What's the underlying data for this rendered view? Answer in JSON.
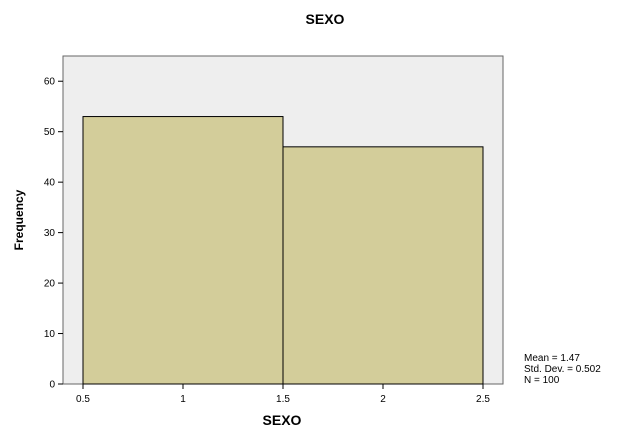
{
  "chart_data": {
    "type": "bar",
    "title": "SEXO",
    "xlabel": "SEXO",
    "ylabel": "Frequency",
    "bins": [
      {
        "x0": 0.5,
        "x1": 1.5,
        "count": 53
      },
      {
        "x0": 1.5,
        "x1": 2.5,
        "count": 47
      }
    ],
    "xlim": [
      0.4,
      2.6
    ],
    "ylim": [
      0,
      65
    ],
    "x_ticks": [
      "0.5",
      "1",
      "1.5",
      "2",
      "2.5"
    ],
    "x_tick_values": [
      0.5,
      1,
      1.5,
      2,
      2.5
    ],
    "y_ticks": [
      "0",
      "10",
      "20",
      "30",
      "40",
      "50",
      "60"
    ],
    "y_tick_values": [
      0,
      10,
      20,
      30,
      40,
      50,
      60
    ],
    "grid": false,
    "stats": {
      "mean": "Mean = 1.47",
      "std_dev": "Std. Dev. = 0.502",
      "n": "N = 100"
    },
    "colors": {
      "plot_background": "#eeeeee",
      "bar_fill": "#d3cd9a",
      "bar_stroke": "#000000"
    }
  }
}
